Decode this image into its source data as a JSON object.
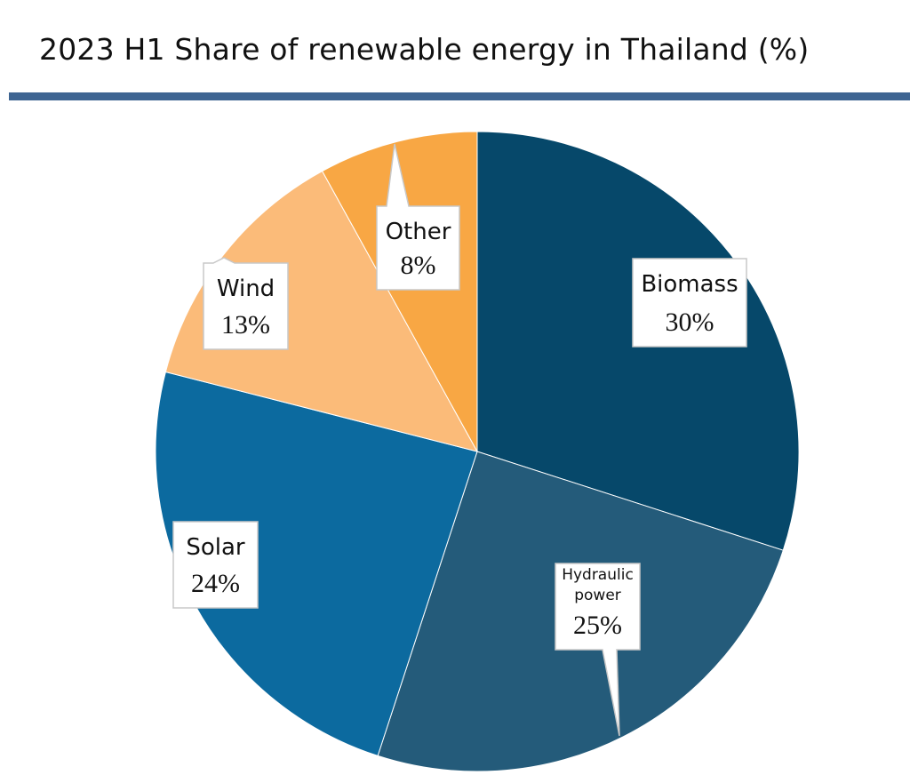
{
  "chart_data": {
    "type": "pie",
    "title": "2023 H1 Share of renewable energy in Thailand (%)",
    "categories": [
      "Biomass",
      "Hydraulic power",
      "Solar",
      "Wind",
      "Other"
    ],
    "values": [
      30,
      25,
      24,
      13,
      8
    ],
    "data_labels": [
      "30%",
      "25%",
      "24%",
      "13%",
      "8%"
    ],
    "label_lines": [
      [
        "Biomass"
      ],
      [
        "Hydraulic",
        "power"
      ],
      [
        "Solar"
      ],
      [
        "Wind"
      ],
      [
        "Other"
      ]
    ],
    "colors": [
      "#06486a",
      "#245b7a",
      "#0c6a9f",
      "#fbbb79",
      "#f8a744"
    ],
    "start": "12 o'clock",
    "direction": "clockwise",
    "legend": "none"
  }
}
